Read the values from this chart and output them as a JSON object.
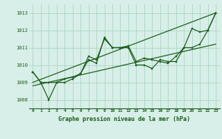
{
  "title": "Graphe pression niveau de la mer (hPa)",
  "bg_color": "#d8eee8",
  "plot_bg_color": "#d8eee8",
  "line_color": "#1a5c1a",
  "grid_color": "#b0d8c8",
  "xlim": [
    -0.5,
    23.5
  ],
  "ylim": [
    1007.5,
    1013.5
  ],
  "yticks": [
    1008,
    1009,
    1010,
    1011,
    1012,
    1013
  ],
  "xticks": [
    0,
    1,
    2,
    3,
    4,
    5,
    6,
    7,
    8,
    9,
    10,
    11,
    12,
    13,
    14,
    15,
    16,
    17,
    18,
    19,
    20,
    21,
    22,
    23
  ],
  "series1_x": [
    0,
    1,
    2,
    3,
    4,
    5,
    6,
    7,
    8,
    9,
    10,
    11,
    12,
    13,
    14,
    15,
    16,
    17,
    18,
    19,
    20,
    21,
    22,
    23
  ],
  "series1_y": [
    1009.6,
    1009.0,
    1009.0,
    1009.0,
    1009.0,
    1009.2,
    1009.5,
    1010.3,
    1010.1,
    1011.6,
    1011.0,
    1011.0,
    1011.1,
    1010.2,
    1010.4,
    1010.3,
    1010.2,
    1010.1,
    1010.5,
    1011.0,
    1012.1,
    1011.9,
    1012.0,
    1013.0
  ],
  "series2_x": [
    0,
    1,
    2,
    3,
    4,
    5,
    6,
    7,
    8,
    9,
    10,
    11,
    12,
    13,
    14,
    15,
    16,
    17,
    18,
    19,
    20,
    21,
    22,
    23
  ],
  "series2_y": [
    1009.6,
    1009.0,
    1008.0,
    1009.0,
    1009.2,
    1009.3,
    1009.5,
    1010.5,
    1010.3,
    1011.5,
    1011.0,
    1011.0,
    1011.0,
    1010.0,
    1010.0,
    1009.8,
    1010.3,
    1010.2,
    1010.2,
    1011.0,
    1011.0,
    1011.2,
    1012.0,
    1013.0
  ],
  "trend1_x": [
    0,
    23
  ],
  "trend1_y": [
    1009.0,
    1013.0
  ],
  "trend2_x": [
    0,
    23
  ],
  "trend2_y": [
    1008.8,
    1011.2
  ]
}
